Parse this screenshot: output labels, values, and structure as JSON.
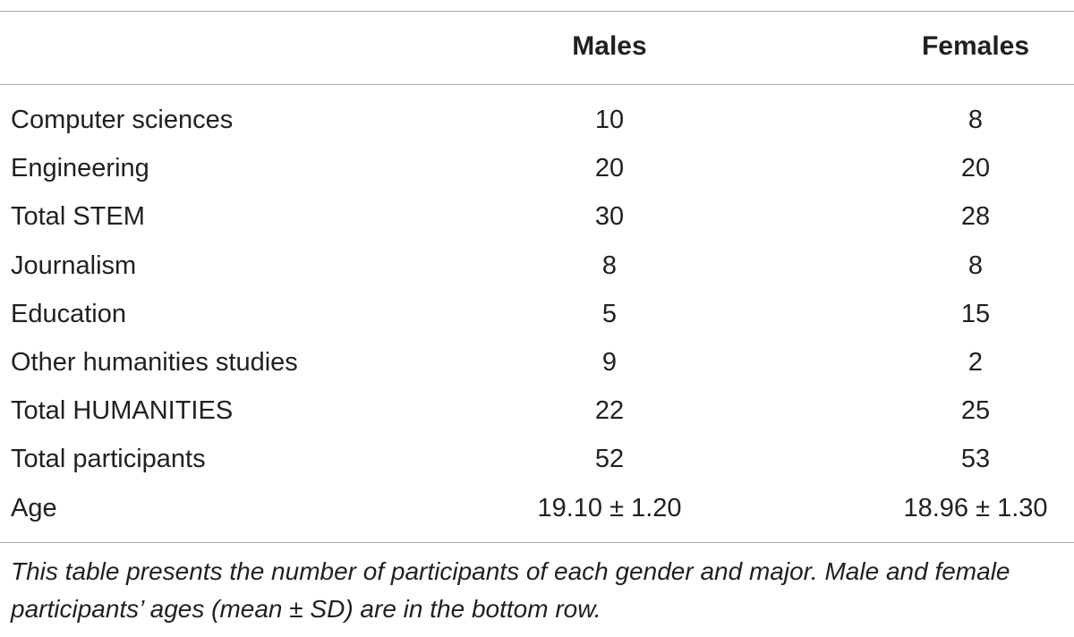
{
  "table": {
    "header": {
      "label": "",
      "males": "Males",
      "females": "Females"
    },
    "rows": [
      {
        "label": "Computer sciences",
        "males": "10",
        "females": "8"
      },
      {
        "label": "Engineering",
        "males": "20",
        "females": "20"
      },
      {
        "label": "Total STEM",
        "males": "30",
        "females": "28"
      },
      {
        "label": "Journalism",
        "males": "8",
        "females": "8"
      },
      {
        "label": "Education",
        "males": "5",
        "females": "15"
      },
      {
        "label": "Other humanities studies",
        "males": "9",
        "females": "2"
      },
      {
        "label": "Total HUMANITIES",
        "males": "22",
        "females": "25"
      },
      {
        "label": "Total participants",
        "males": "52",
        "females": "53"
      },
      {
        "label": "Age",
        "males": "19.10 ± 1.20",
        "females": "18.96 ± 1.30"
      }
    ],
    "footnote": "This table presents the number of participants of each gender and major. Male and female participants’ ages (mean ± SD) are in the bottom row."
  },
  "colors": {
    "text": "#231f20",
    "rule": "#a7a9ac",
    "background": "#ffffff"
  }
}
